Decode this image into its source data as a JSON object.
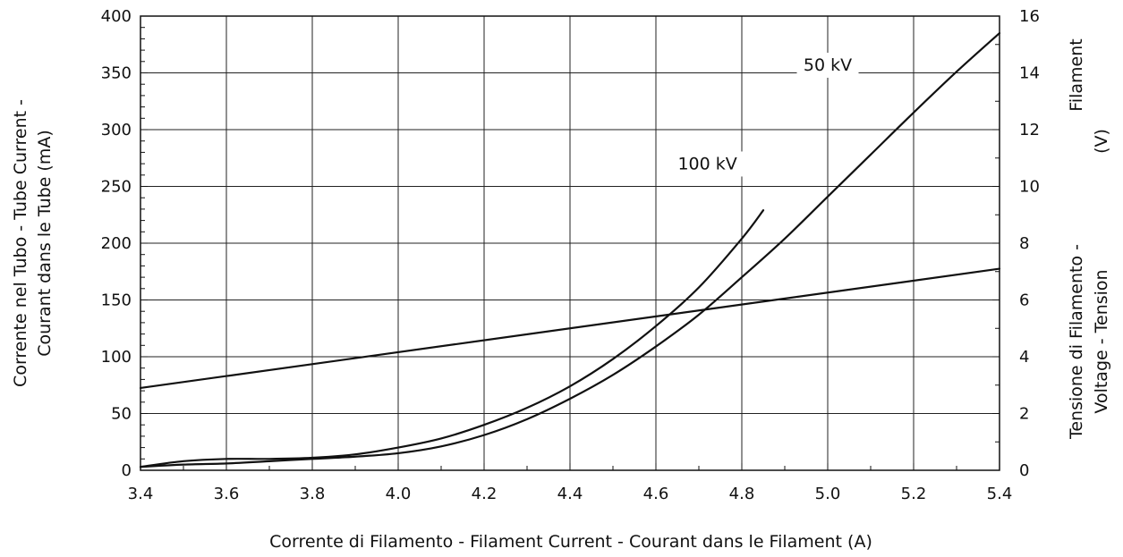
{
  "chart_data": {
    "type": "line",
    "title": "",
    "xlabel": "Corrente di Filamento - Filament Current - Courant dans le Filament  (A)",
    "ylabel_left": [
      "Corrente nel Tubo - Tube Current -",
      "Courant dans le Tube   (mA)"
    ],
    "ylabel_right": [
      "Filament",
      "(V)",
      "Tensione di Filamento -",
      "Voltage - Tension"
    ],
    "xlim": [
      3.4,
      5.4
    ],
    "ylim_left": [
      0,
      400
    ],
    "ylim_right": [
      0,
      16
    ],
    "grid": true,
    "x_ticks": [
      "3.4",
      "3.6",
      "3.8",
      "4.0",
      "4.2",
      "4.4",
      "4.6",
      "4.8",
      "5.0",
      "5.2",
      "5.4"
    ],
    "y_left_ticks": [
      "0",
      "50",
      "100",
      "150",
      "200",
      "250",
      "300",
      "350",
      "400"
    ],
    "y_right_ticks": [
      "0",
      "2",
      "4",
      "6",
      "8",
      "10",
      "12",
      "14",
      "16"
    ],
    "series": [
      {
        "name": "50 kV",
        "axis": "left",
        "x": [
          3.4,
          3.5,
          3.6,
          3.7,
          3.8,
          3.9,
          4.0,
          4.1,
          4.2,
          4.3,
          4.4,
          4.5,
          4.6,
          4.7,
          4.8,
          4.9,
          5.0,
          5.1,
          5.2,
          5.3,
          5.4
        ],
        "y": [
          3,
          5,
          6,
          8,
          10,
          12,
          15,
          21,
          31,
          45,
          63,
          84,
          109,
          137,
          170,
          204,
          241,
          278,
          315,
          351,
          385
        ]
      },
      {
        "name": "100 kV",
        "axis": "left",
        "x": [
          3.4,
          3.5,
          3.6,
          3.7,
          3.8,
          3.9,
          4.0,
          4.1,
          4.2,
          4.3,
          4.4,
          4.5,
          4.6,
          4.7,
          4.8,
          4.85
        ],
        "y": [
          3,
          8,
          10,
          10,
          11,
          14,
          20,
          28,
          40,
          55,
          74,
          98,
          127,
          161,
          204,
          229
        ]
      },
      {
        "name": "",
        "axis": "right",
        "x": [
          3.4,
          5.4
        ],
        "y": [
          2.9,
          7.1
        ]
      }
    ],
    "annotations": [
      {
        "text": "50 kV",
        "x": 5.0,
        "y": 352
      },
      {
        "text": "100 kV",
        "x": 4.72,
        "y": 265
      }
    ]
  }
}
